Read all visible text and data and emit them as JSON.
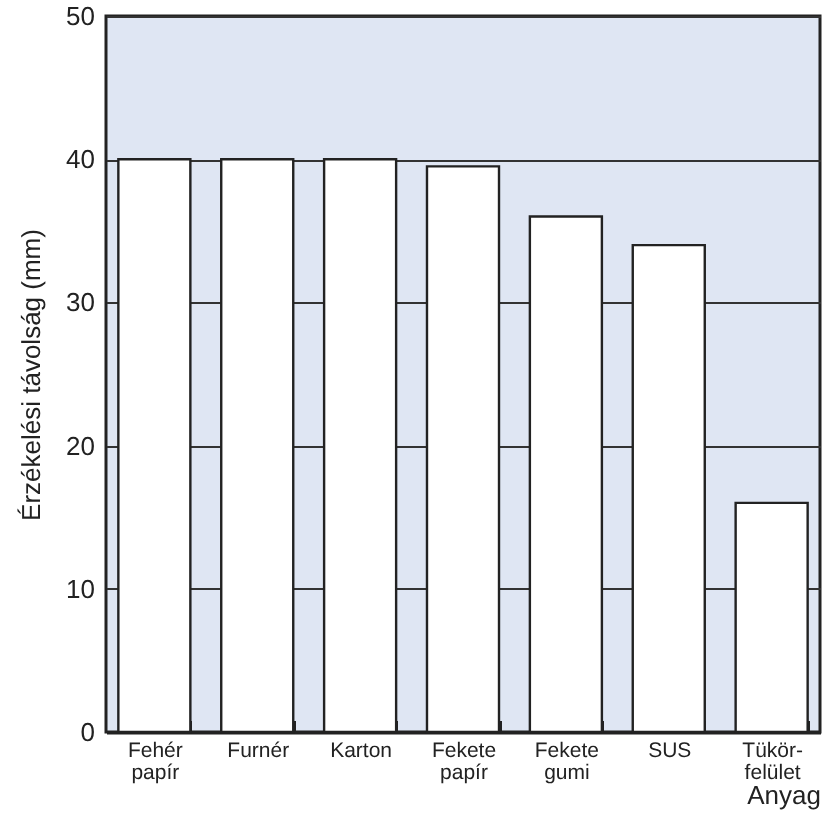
{
  "chart_data": {
    "type": "bar",
    "xlabel": "Anyag",
    "ylabel": "Érzékelési távolság (mm)",
    "categories": [
      "Fehér papír",
      "Furnér",
      "Karton",
      "Fekete papír",
      "Fekete gumi",
      "SUS",
      "Tükör-felület"
    ],
    "values": [
      40,
      40,
      40,
      39.5,
      36,
      34,
      16
    ],
    "color": "#ffffff",
    "ylim": [
      0,
      50
    ],
    "yticks": [
      0,
      10,
      20,
      30,
      40,
      50
    ],
    "grid": "y"
  }
}
